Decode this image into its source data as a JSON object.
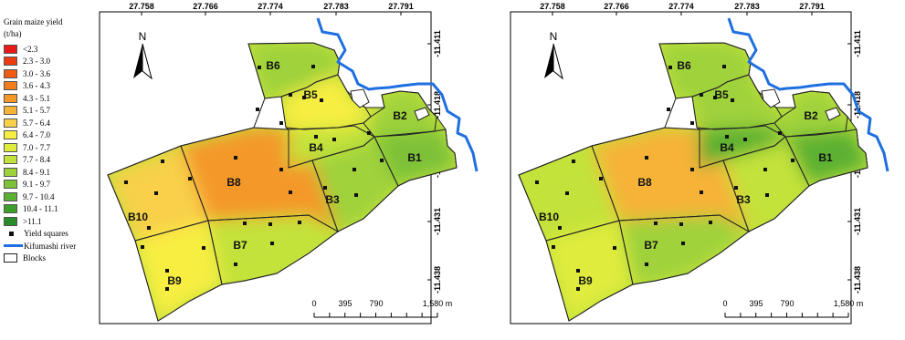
{
  "legend": {
    "title_line1": "Grain maize yield",
    "title_line2": "(t/ha)",
    "classes": [
      {
        "label": "<2.3",
        "color": "#e8191a"
      },
      {
        "label": "2.3 - 3.0",
        "color": "#ee3c12"
      },
      {
        "label": "3.0 - 3.6",
        "color": "#f05a12"
      },
      {
        "label": "3.6 - 4.3",
        "color": "#f27d1f"
      },
      {
        "label": "4.3 - 5.1",
        "color": "#f4982a"
      },
      {
        "label": "5.1 - 5.7",
        "color": "#f6b339"
      },
      {
        "label": "5.7 - 6.4",
        "color": "#f8d04a"
      },
      {
        "label": "6.4 - 7.0",
        "color": "#f8ee42"
      },
      {
        "label": "7.0 - 7.7",
        "color": "#e0ec3c"
      },
      {
        "label": "7.7 - 8.4",
        "color": "#c3e23b"
      },
      {
        "label": "8.4 - 9.1",
        "color": "#9fd23a"
      },
      {
        "label": "9.1 - 9.7",
        "color": "#7dc138"
      },
      {
        "label": "9.7 - 10.4",
        "color": "#5cb032"
      },
      {
        "label": "10.4 - 11.1",
        "color": "#3e9f2c"
      },
      {
        "label": ">11.1",
        "color": "#2a8c28"
      }
    ],
    "yield_squares_label": "Yield squares",
    "river_label": "Kifumashi river",
    "blocks_label": "Blocks"
  },
  "map": {
    "top_ticks": [
      "27.758",
      "27.766",
      "27.774",
      "27.783",
      "27.791"
    ],
    "right_ticks": [
      "-11.411",
      "-11.418",
      "-11.425",
      "-11.431",
      "-11.438"
    ],
    "north_label": "N",
    "block_labels": [
      "B1",
      "B2",
      "B3",
      "B4",
      "B5",
      "B6",
      "B7",
      "B8",
      "B9",
      "B10"
    ],
    "scale_labels": [
      "0",
      "395",
      "790",
      "1,580 m"
    ],
    "river_color": "#1e6fe0"
  },
  "maps": [
    {
      "id": "left",
      "block_yield_classes": {
        "B1": 11,
        "B2": 10,
        "B3": 10,
        "B4": 9,
        "B5": 7,
        "B6": 10,
        "B7": 9,
        "B8": 4,
        "B9": 7,
        "B10": 6
      }
    },
    {
      "id": "right",
      "block_yield_classes": {
        "B1": 12,
        "B2": 10,
        "B3": 9,
        "B4": 12,
        "B5": 10,
        "B6": 10,
        "B7": 10,
        "B8": 5,
        "B9": 8,
        "B10": 9
      }
    }
  ]
}
